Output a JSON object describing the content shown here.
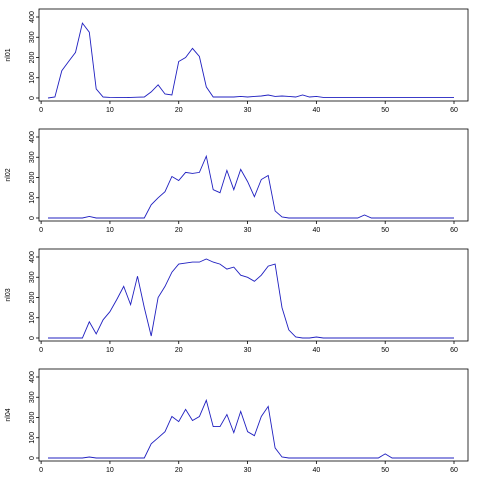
{
  "chart_data": [
    {
      "type": "line",
      "ylabel": "nl01",
      "xlim": [
        1,
        60
      ],
      "ylim": [
        0,
        400
      ],
      "xticks": [
        "0",
        "10",
        "20",
        "30",
        "40",
        "50",
        "60"
      ],
      "yticks": [
        "0",
        "100",
        "200",
        "300",
        "400"
      ],
      "color": "#2020c0",
      "x": [
        1,
        2,
        3,
        4,
        5,
        6,
        7,
        8,
        9,
        10,
        11,
        12,
        13,
        14,
        15,
        16,
        17,
        18,
        19,
        20,
        21,
        22,
        23,
        24,
        25,
        26,
        27,
        28,
        29,
        30,
        31,
        32,
        33,
        34,
        35,
        36,
        37,
        38,
        39,
        40,
        41,
        42,
        43,
        44,
        45,
        46,
        47,
        48,
        49,
        50,
        51,
        52,
        53,
        54,
        55,
        56,
        57,
        58,
        59,
        60
      ],
      "values": [
        0,
        5,
        135,
        180,
        225,
        370,
        325,
        45,
        5,
        3,
        2,
        2,
        3,
        4,
        5,
        30,
        65,
        20,
        15,
        180,
        200,
        245,
        205,
        55,
        5,
        5,
        5,
        5,
        8,
        5,
        8,
        10,
        15,
        8,
        10,
        8,
        5,
        15,
        5,
        8,
        3,
        3,
        3,
        3,
        3,
        3,
        3,
        3,
        3,
        3,
        3,
        3,
        3,
        3,
        3,
        3,
        3,
        3,
        3,
        3
      ]
    },
    {
      "type": "line",
      "ylabel": "nl02",
      "xlim": [
        1,
        60
      ],
      "ylim": [
        0,
        400
      ],
      "xticks": [
        "0",
        "10",
        "20",
        "30",
        "40",
        "50",
        "60"
      ],
      "yticks": [
        "0",
        "100",
        "200",
        "300",
        "400"
      ],
      "color": "#2020c0",
      "x": [
        1,
        2,
        3,
        4,
        5,
        6,
        7,
        8,
        9,
        10,
        11,
        12,
        13,
        14,
        15,
        16,
        17,
        18,
        19,
        20,
        21,
        22,
        23,
        24,
        25,
        26,
        27,
        28,
        29,
        30,
        31,
        32,
        33,
        34,
        35,
        36,
        37,
        38,
        39,
        40,
        41,
        42,
        43,
        44,
        45,
        46,
        47,
        48,
        49,
        50,
        51,
        52,
        53,
        54,
        55,
        56,
        57,
        58,
        59,
        60
      ],
      "values": [
        0,
        0,
        0,
        0,
        0,
        0,
        8,
        0,
        0,
        0,
        0,
        0,
        0,
        0,
        0,
        65,
        100,
        130,
        205,
        185,
        225,
        220,
        225,
        305,
        140,
        125,
        235,
        140,
        240,
        180,
        105,
        190,
        210,
        35,
        5,
        0,
        0,
        0,
        0,
        0,
        0,
        0,
        0,
        0,
        0,
        0,
        15,
        0,
        0,
        0,
        0,
        0,
        0,
        0,
        0,
        0,
        0,
        0,
        0,
        0
      ]
    },
    {
      "type": "line",
      "ylabel": "nl03",
      "xlim": [
        1,
        60
      ],
      "ylim": [
        0,
        400
      ],
      "xticks": [
        "0",
        "10",
        "20",
        "30",
        "40",
        "50",
        "60"
      ],
      "yticks": [
        "0",
        "100",
        "200",
        "300",
        "400"
      ],
      "color": "#2020c0",
      "x": [
        1,
        2,
        3,
        4,
        5,
        6,
        7,
        8,
        9,
        10,
        11,
        12,
        13,
        14,
        15,
        16,
        17,
        18,
        19,
        20,
        21,
        22,
        23,
        24,
        25,
        26,
        27,
        28,
        29,
        30,
        31,
        32,
        33,
        34,
        35,
        36,
        37,
        38,
        39,
        40,
        41,
        42,
        43,
        44,
        45,
        46,
        47,
        48,
        49,
        50,
        51,
        52,
        53,
        54,
        55,
        56,
        57,
        58,
        59,
        60
      ],
      "values": [
        0,
        0,
        0,
        0,
        0,
        0,
        80,
        20,
        90,
        130,
        190,
        255,
        165,
        305,
        150,
        10,
        200,
        255,
        325,
        365,
        370,
        375,
        375,
        390,
        375,
        365,
        340,
        350,
        310,
        300,
        280,
        310,
        355,
        365,
        150,
        40,
        5,
        0,
        0,
        5,
        0,
        0,
        0,
        0,
        0,
        0,
        0,
        0,
        0,
        0,
        0,
        0,
        0,
        0,
        0,
        0,
        0,
        0,
        0,
        0
      ]
    },
    {
      "type": "line",
      "ylabel": "nl04",
      "xlim": [
        1,
        60
      ],
      "ylim": [
        0,
        400
      ],
      "xticks": [
        "0",
        "10",
        "20",
        "30",
        "40",
        "50",
        "60"
      ],
      "yticks": [
        "0",
        "100",
        "200",
        "300",
        "400"
      ],
      "color": "#2020c0",
      "x": [
        1,
        2,
        3,
        4,
        5,
        6,
        7,
        8,
        9,
        10,
        11,
        12,
        13,
        14,
        15,
        16,
        17,
        18,
        19,
        20,
        21,
        22,
        23,
        24,
        25,
        26,
        27,
        28,
        29,
        30,
        31,
        32,
        33,
        34,
        35,
        36,
        37,
        38,
        39,
        40,
        41,
        42,
        43,
        44,
        45,
        46,
        47,
        48,
        49,
        50,
        51,
        52,
        53,
        54,
        55,
        56,
        57,
        58,
        59,
        60
      ],
      "values": [
        0,
        0,
        0,
        0,
        0,
        0,
        5,
        0,
        0,
        0,
        0,
        0,
        0,
        0,
        0,
        70,
        100,
        130,
        205,
        180,
        240,
        185,
        205,
        285,
        155,
        155,
        215,
        125,
        230,
        130,
        110,
        205,
        255,
        50,
        5,
        0,
        0,
        0,
        0,
        0,
        0,
        0,
        0,
        0,
        0,
        0,
        0,
        0,
        0,
        20,
        0,
        0,
        0,
        0,
        0,
        0,
        0,
        0,
        0,
        0
      ]
    }
  ]
}
